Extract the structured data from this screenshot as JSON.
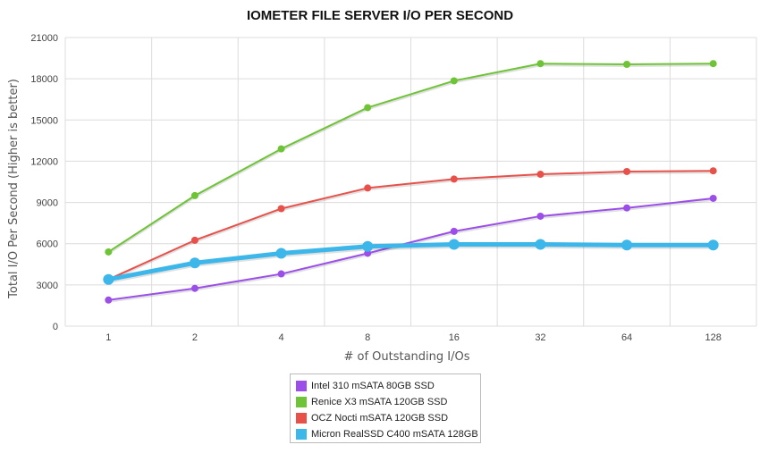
{
  "chart_data": {
    "type": "line",
    "title": "IOMETER FILE SERVER I/O PER SECOND",
    "xlabel": "# of Outstanding I/Os",
    "ylabel": "Total I/O Per Second (Higher is better)",
    "categories": [
      "1",
      "2",
      "4",
      "8",
      "16",
      "32",
      "64",
      "128"
    ],
    "ylim": [
      0,
      21000
    ],
    "yticks": [
      0,
      3000,
      6000,
      9000,
      12000,
      15000,
      18000,
      21000
    ],
    "grid": true,
    "legend_position": "bottom-center",
    "series": [
      {
        "name": "Intel 310 mSATA 80GB SSD",
        "color": "#9b4ee8",
        "values": [
          1900,
          2750,
          3800,
          5300,
          6900,
          8000,
          8600,
          9300
        ]
      },
      {
        "name": "Renice X3 mSATA 120GB SSD",
        "color": "#6ec337",
        "values": [
          5400,
          9500,
          12900,
          15900,
          17850,
          19100,
          19050,
          19100
        ]
      },
      {
        "name": "OCZ Nocti mSATA 120GB SSD",
        "color": "#e8504a",
        "values": [
          3400,
          6250,
          8550,
          10050,
          10700,
          11050,
          11250,
          11300
        ]
      },
      {
        "name": "Micron RealSSD C400 mSATA 128GB",
        "color": "#3db6ea",
        "values": [
          3400,
          4600,
          5300,
          5800,
          5950,
          5950,
          5900,
          5900
        ]
      }
    ]
  }
}
